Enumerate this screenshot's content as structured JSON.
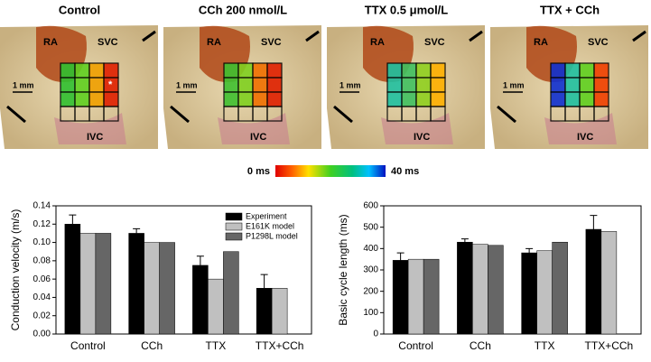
{
  "panels": [
    {
      "title": "Control",
      "labels": [
        "RA",
        "SVC",
        "1 mm",
        "IVC"
      ],
      "marker": "*"
    },
    {
      "title": "CCh 200 nmol/L",
      "labels": [
        "RA",
        "SVC",
        "1 mm",
        "IVC"
      ]
    },
    {
      "title": "TTX 0.5 μmol/L",
      "labels": [
        "RA",
        "SVC",
        "1 mm",
        "IVC"
      ]
    },
    {
      "title": "TTX + CCh",
      "labels": [
        "RA",
        "SVC",
        "1 mm",
        "IVC"
      ]
    }
  ],
  "colorbar": {
    "min_label": "0 ms",
    "max_label": "40 ms"
  },
  "chart_data": [
    {
      "type": "bar",
      "ylabel": "Conduction velocity (m/s)",
      "categories": [
        "Control",
        "CCh",
        "TTX",
        "TTX+CCh"
      ],
      "ylim": [
        0,
        0.14
      ],
      "yticks": [
        {
          "value": 0,
          "label": "0.00"
        },
        0.02,
        0.04,
        0.06,
        0.08,
        {
          "value": 0.1,
          "label": "0.10"
        },
        0.12,
        0.14
      ],
      "legend": "upper right",
      "series": [
        {
          "name": "Experiment",
          "color": "#000000",
          "values": [
            0.12,
            0.11,
            0.075,
            0.05
          ],
          "errors": [
            0.01,
            0.005,
            0.01,
            0.015
          ]
        },
        {
          "name": "E161K model",
          "color": "#c0c0c0",
          "values": [
            0.11,
            0.1,
            0.06,
            0.05
          ]
        },
        {
          "name": "P1298L model",
          "color": "#666666",
          "values": [
            0.11,
            0.1,
            0.09,
            null
          ]
        }
      ]
    },
    {
      "type": "bar",
      "ylabel": "Basic cycle length (ms)",
      "categories": [
        "Control",
        "CCh",
        "TTX",
        "TTX+CCh"
      ],
      "ylim": [
        0,
        600
      ],
      "yticks": [
        0,
        100,
        200,
        300,
        400,
        500,
        600
      ],
      "series": [
        {
          "color": "#000000",
          "values": [
            345,
            430,
            380,
            490
          ],
          "errors": [
            35,
            15,
            20,
            65
          ]
        },
        {
          "color": "#c0c0c0",
          "values": [
            350,
            420,
            390,
            480
          ]
        },
        {
          "color": "#666666",
          "values": [
            350,
            415,
            430,
            null
          ]
        }
      ]
    }
  ]
}
